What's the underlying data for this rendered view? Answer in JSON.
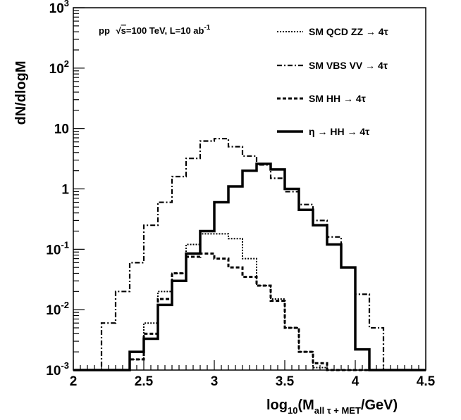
{
  "chart_data": {
    "type": "line",
    "step": true,
    "annotation": {
      "prefix": "pp",
      "sqrt": "s",
      "suffix": "=100 TeV, L=10 ab",
      "sup": "-1"
    },
    "xlabel": {
      "base": "log",
      "sub1": "10",
      "mid": "(M",
      "sub2": "all τ + MET",
      "end": "/GeV)"
    },
    "ylabel": "dN/dlogM",
    "xlim": [
      2,
      4.5
    ],
    "ylim": [
      0.001,
      1000
    ],
    "yscale": "log",
    "x_ticks": [
      "2",
      "2.5",
      "3",
      "3.5",
      "4",
      "4.5"
    ],
    "y_ticks": [
      {
        "value": 0.001,
        "base": "10",
        "exp": "-3"
      },
      {
        "value": 0.01,
        "base": "10",
        "exp": "-2"
      },
      {
        "value": 0.1,
        "base": "10",
        "exp": "-1"
      },
      {
        "value": 1,
        "base": "1",
        "exp": ""
      },
      {
        "value": 10,
        "base": "10",
        "exp": ""
      },
      {
        "value": 100,
        "base": "10",
        "exp": "2"
      },
      {
        "value": 1000,
        "base": "10",
        "exp": "3"
      }
    ],
    "grid": false,
    "legend_position": "top-right",
    "bin_edges": [
      2.0,
      2.1,
      2.2,
      2.3,
      2.4,
      2.5,
      2.6,
      2.7,
      2.8,
      2.9,
      3.0,
      3.1,
      3.2,
      3.3,
      3.4,
      3.5,
      3.6,
      3.7,
      3.8,
      3.9,
      4.0,
      4.1,
      4.2,
      4.3,
      4.4,
      4.5
    ],
    "series": [
      {
        "name": "SM QCD ZZ → 4τ",
        "style": "dotted",
        "values": [
          0,
          0,
          0,
          0.001,
          0.0015,
          0.006,
          0.02,
          0.04,
          0.12,
          0.18,
          0.18,
          0.15,
          0.07,
          0.025,
          0.015,
          0.005,
          0.002,
          0.0011,
          0,
          0,
          0,
          0,
          0,
          0,
          0
        ]
      },
      {
        "name": "SM VBS VV → 4τ",
        "style": "dashdot",
        "values": [
          0,
          0,
          0.006,
          0.02,
          0.06,
          0.25,
          0.6,
          1.6,
          3.2,
          6.2,
          6.8,
          5.0,
          3.5,
          2.5,
          1.5,
          0.9,
          0.55,
          0.3,
          0.16,
          0.05,
          0.018,
          0.005,
          0,
          0,
          0
        ]
      },
      {
        "name": "SM HH → 4τ",
        "style": "dashed",
        "values": [
          0,
          0,
          0,
          0,
          0.0015,
          0.004,
          0.015,
          0.04,
          0.075,
          0.085,
          0.07,
          0.05,
          0.035,
          0.025,
          0.014,
          0.005,
          0.002,
          0.0013,
          0,
          0,
          0,
          0,
          0,
          0,
          0
        ]
      },
      {
        "name": "η → HH → 4τ",
        "style": "solid",
        "values": [
          0,
          0,
          0,
          0,
          0.002,
          0.0033,
          0.012,
          0.03,
          0.085,
          0.2,
          0.6,
          1.1,
          2.0,
          2.6,
          2.1,
          1.0,
          0.45,
          0.25,
          0.12,
          0.05,
          0.0022,
          0,
          0,
          0,
          0
        ]
      }
    ]
  },
  "colors": {
    "line": "#000000",
    "background": "#ffffff"
  }
}
